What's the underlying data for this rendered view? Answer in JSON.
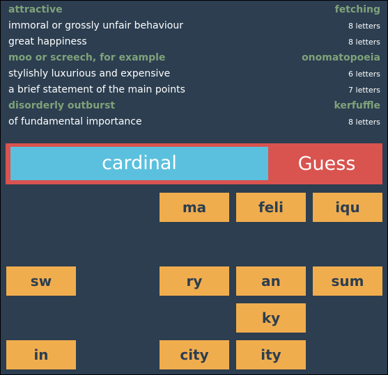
{
  "colors": {
    "background": "#2c3e50",
    "solved_text": "#7fa27a",
    "clue_text": "#ffffff",
    "input_bg": "#5bc0de",
    "guess_bg": "#d9534f",
    "tile_bg": "#f0ad4e",
    "tile_text": "#2c3e50"
  },
  "clues": [
    {
      "text": "attractive",
      "answer": "fetching",
      "solved": true
    },
    {
      "text": "immoral or grossly unfair behaviour",
      "length": "8 letters",
      "solved": false
    },
    {
      "text": "great happiness",
      "length": "8 letters",
      "solved": false
    },
    {
      "text": "moo or screech, for example",
      "answer": "onomatopoeia",
      "solved": true
    },
    {
      "text": "stylishly luxurious and expensive",
      "length": "6 letters",
      "solved": false
    },
    {
      "text": "a brief statement of the main points",
      "length": "7 letters",
      "solved": false
    },
    {
      "text": "disorderly outburst",
      "answer": "kerfuffle",
      "solved": true
    },
    {
      "text": "of fundamental importance",
      "length": "8 letters",
      "solved": false
    }
  ],
  "guess": {
    "value": "cardinal",
    "button_label": "Guess"
  },
  "tiles": {
    "row1": [
      "ma",
      "feli",
      "iqu"
    ],
    "row2": [
      "sw",
      "ry",
      "an",
      "sum"
    ],
    "row3": [
      "ky"
    ],
    "row4": [
      "in",
      "city",
      "ity"
    ]
  }
}
